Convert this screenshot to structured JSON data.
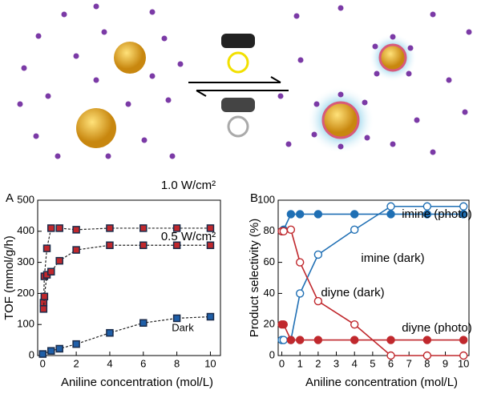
{
  "chart_data": [
    {
      "type": "scatter",
      "panel": "A",
      "x_label": "Aniline concentration (mol/L)",
      "y_label": "TOF (mmol/g/h)",
      "xlim": [
        -0.3,
        10.6
      ],
      "ylim": [
        0,
        500
      ],
      "xticks": [
        0,
        2,
        4,
        6,
        8,
        10
      ],
      "yticks": [
        0,
        100,
        200,
        300,
        400,
        500
      ],
      "series": [
        {
          "name": "1.0 W/cm²",
          "color": "#c0282d",
          "marker": "square",
          "filled": true,
          "line": "dashed",
          "x": [
            0.05,
            0.1,
            0.25,
            0.5,
            1,
            2,
            4,
            6,
            8,
            10
          ],
          "values": [
            170,
            255,
            345,
            410,
            410,
            405,
            410,
            410,
            410,
            410
          ]
        },
        {
          "name": "0.5 W/cm²",
          "color": "#c0282d",
          "marker": "square",
          "filled": true,
          "line": "dashed",
          "x": [
            0.05,
            0.1,
            0.25,
            0.5,
            1,
            2,
            4,
            6,
            8,
            10
          ],
          "values": [
            150,
            190,
            260,
            270,
            305,
            340,
            355,
            355,
            355,
            355
          ]
        },
        {
          "name": "Dark",
          "color": "#1f5fa8",
          "marker": "square",
          "filled": true,
          "line": "dashed",
          "x": [
            0,
            0.5,
            1,
            2,
            4,
            6,
            8,
            10
          ],
          "values": [
            5,
            15,
            22,
            37,
            73,
            105,
            120,
            125
          ]
        }
      ]
    },
    {
      "type": "scatter",
      "panel": "B",
      "x_label": "Aniline concentration (mol/L)",
      "y_label": "Product selectivity (%)",
      "xlim": [
        -0.2,
        10.3
      ],
      "ylim": [
        0,
        100
      ],
      "xticks": [
        0,
        1,
        2,
        3,
        4,
        5,
        6,
        7,
        8,
        9,
        10
      ],
      "yticks": [
        0,
        20,
        40,
        60,
        80,
        100
      ],
      "series": [
        {
          "name": "imine (photo)",
          "color": "#1f6fb4",
          "marker": "circle",
          "filled": true,
          "line": "solid",
          "x": [
            0,
            0.1,
            0.5,
            1,
            2,
            4,
            6,
            8,
            10
          ],
          "values": [
            80,
            81,
            91,
            91,
            91,
            91,
            91,
            91,
            91
          ]
        },
        {
          "name": "imine (dark)",
          "color": "#1f6fb4",
          "marker": "circle",
          "filled": false,
          "line": "solid",
          "x": [
            0,
            0.1,
            0.5,
            1,
            2,
            4,
            6,
            8,
            10
          ],
          "values": [
            10,
            10,
            10,
            40,
            65,
            81,
            96,
            96,
            96
          ]
        },
        {
          "name": "diyne (dark)",
          "color": "#c0282d",
          "marker": "circle",
          "filled": false,
          "line": "solid",
          "x": [
            0,
            0.1,
            0.5,
            1,
            2,
            4,
            6,
            8,
            10
          ],
          "values": [
            80,
            80,
            81,
            60,
            35,
            20,
            0,
            0,
            0
          ]
        },
        {
          "name": "diyne (photo)",
          "color": "#c0282d",
          "marker": "circle",
          "filled": true,
          "line": "solid",
          "x": [
            0,
            0.1,
            0.5,
            1,
            2,
            4,
            6,
            8,
            10
          ],
          "values": [
            20,
            20,
            10,
            10,
            10,
            10,
            10,
            10,
            10
          ]
        }
      ]
    }
  ]
}
